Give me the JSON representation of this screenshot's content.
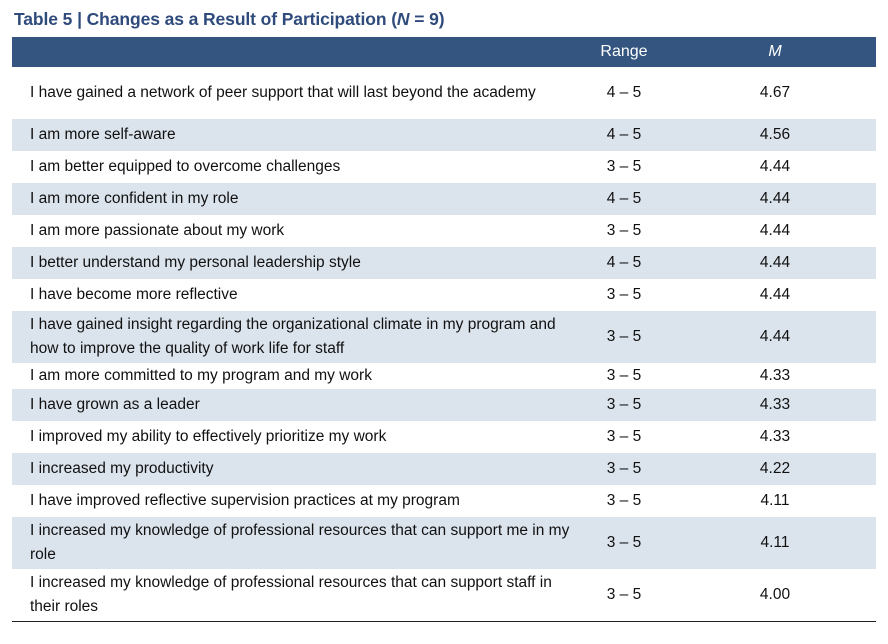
{
  "table": {
    "caption_prefix": "Table 5 | Changes as a Result of Participation (",
    "caption_n": "N",
    "caption_suffix": " = 9)",
    "headers": {
      "statement": "",
      "range": "Range",
      "mean": "M"
    },
    "rows": [
      {
        "statement": "I have gained a network of peer support that will last beyond the academy",
        "range": "4 – 5",
        "mean": "4.67",
        "height": "tall"
      },
      {
        "statement": "I am more self-aware",
        "range": "4 – 5",
        "mean": "4.56",
        "height": "normal"
      },
      {
        "statement": "I am better equipped to overcome challenges",
        "range": "3 – 5",
        "mean": "4.44",
        "height": "normal"
      },
      {
        "statement": "I am more confident in my role",
        "range": "4 – 5",
        "mean": "4.44",
        "height": "normal"
      },
      {
        "statement": "I am more passionate about my work",
        "range": "3 – 5",
        "mean": "4.44",
        "height": "normal"
      },
      {
        "statement": "I better understand my personal leadership style",
        "range": "4 – 5",
        "mean": "4.44",
        "height": "normal"
      },
      {
        "statement": "I have become more reflective",
        "range": "3 – 5",
        "mean": "4.44",
        "height": "normal"
      },
      {
        "statement": "I have gained insight regarding the organizational climate in my program and how to improve the quality of work life for staff",
        "range": "3 – 5",
        "mean": "4.44",
        "height": "tall"
      },
      {
        "statement": "I am more committed to my program and my work",
        "range": "3 – 5",
        "mean": "4.33",
        "height": "short"
      },
      {
        "statement": "I have grown as a leader",
        "range": "3 – 5",
        "mean": "4.33",
        "height": "normal"
      },
      {
        "statement": "I improved my ability to effectively prioritize my work",
        "range": "3 – 5",
        "mean": "4.33",
        "height": "normal"
      },
      {
        "statement": "I increased my productivity",
        "range": "3 – 5",
        "mean": "4.22",
        "height": "normal"
      },
      {
        "statement": "I have improved reflective supervision practices at my program",
        "range": "3 – 5",
        "mean": "4.11",
        "height": "normal"
      },
      {
        "statement": "I increased my knowledge of professional resources that can support me in my role",
        "range": "3 – 5",
        "mean": "4.11",
        "height": "tall"
      },
      {
        "statement": "I increased my knowledge of professional resources that can support staff in their roles",
        "range": "3 – 5",
        "mean": "4.00",
        "height": "tall"
      }
    ]
  },
  "colors": {
    "title": "#2f4b7c",
    "header_bg": "#34557f",
    "alt_row_bg": "#dbe3ec"
  }
}
